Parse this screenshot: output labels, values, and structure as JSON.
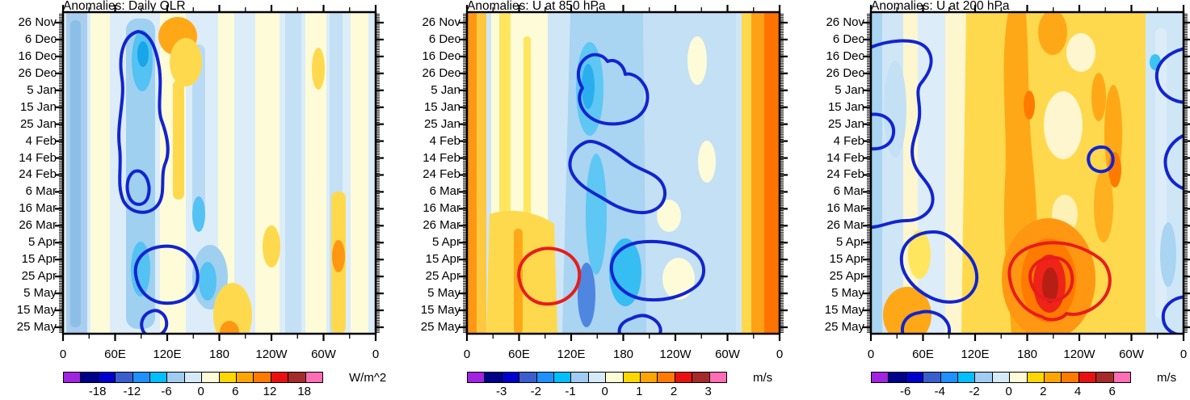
{
  "chart_data": {
    "type": "heatmap",
    "subtype": "hovmoller-time-longitude-anomaly-panels",
    "panels": [
      {
        "title": "Anomalies: Daily OLR",
        "colorbar_tick_labels": [
          "-18",
          "-12",
          "-6",
          "0",
          "6",
          "12",
          "18"
        ],
        "colorbar_units": "W/m^2",
        "features": [
          "Thick blue contour (negative OLR / enhanced convection) over roughly 60E-130E from early Dec to mid Mar, with an inner closed contour near 24 Feb-6 Mar",
          "Second blue contour region near 80E-150E from mid Apr to late May and a small one near 120E in late May",
          "Weak alternating pale-blue and cream vertical streaks elsewhere; small orange patch near 110E-130E in late Nov-Dec and yellow streaks near 150W-60W"
        ]
      },
      {
        "title": "Anomalies: U at 850 hPa",
        "colorbar_tick_labels": [
          "-3",
          "-2",
          "-1",
          "0",
          "1",
          "2",
          "3"
        ],
        "colorbar_units": "m/s",
        "features": [
          "Broad easterly (blue/cyan) band near 120E-150W all season; blue contours late Dec-late Jan, Feb-mid Mar (slanting eastward), mid Apr-early May near 170E-150W, and late May near 150E",
          "Red contour (westerly anomaly) near 60E-110E from early Apr to mid May over a yellow/orange region",
          "Westerly (orange) bands hugging 0-20E and 40W-0 longitudes, strongest at the right edge"
        ]
      },
      {
        "title": "Anomalies: U at 200 hPa",
        "colorbar_tick_labels": [
          "-6",
          "-4",
          "-2",
          "0",
          "2",
          "4",
          "6"
        ],
        "colorbar_units": "m/s",
        "features": [
          "Broad westerly (yellow/orange) regime from ~90E to 120W; strong red core near 180-150W from mid Apr to mid May enclosed by nested red contours",
          "Wavy blue contours (easterly anomalies) near 0-60E from Dec through May, with a closed blob near 30E-100E in Apr-May",
          "Blue contours clipped at the right edge near 60W-0 and a small closed blue contour near 150W in mid Feb; pale-blue easterly bands at both edges"
        ]
      }
    ],
    "y_tick_labels": [
      "26 Nov",
      "6 Dec",
      "16 Dec",
      "26 Dec",
      "5 Jan",
      "15 Jan",
      "25 Jan",
      "4 Feb",
      "14 Feb",
      "24 Feb",
      "6 Mar",
      "16 Mar",
      "26 Mar",
      "5 Apr",
      "15 Apr",
      "25 Apr",
      "5 May",
      "15 May",
      "25 May"
    ],
    "x_tick_labels": [
      "0",
      "60E",
      "120E",
      "180",
      "120W",
      "60W",
      "0"
    ],
    "x_axis": {
      "range_deg": [
        0,
        360
      ],
      "major_step_deg": 60,
      "minor_step_deg": 30
    },
    "y_axis": {
      "major_step_days": 10,
      "minor_step_days": 1
    },
    "colorbar_colors": [
      "#a024e0",
      "#00008b",
      "#0000cd",
      "#3a5fcd",
      "#1e90ff",
      "#00bfff",
      "#9fccf0",
      "#d5eaf8",
      "#fdfbd8",
      "#ffd700",
      "#ffa500",
      "#ff7b00",
      "#ea1010",
      "#a52a2a",
      "#ff6eb4"
    ],
    "contour_colors": {
      "negative_anomaly": "#1224cf",
      "positive_anomaly": "#e81c1c"
    }
  }
}
